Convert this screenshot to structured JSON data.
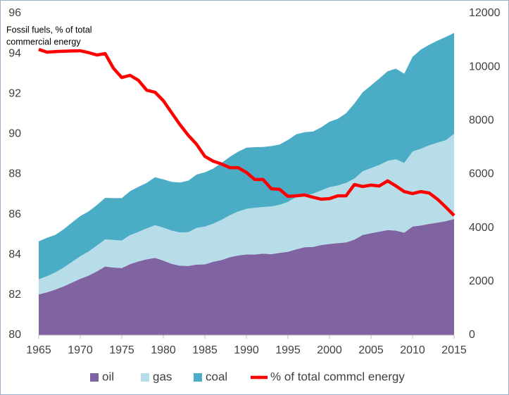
{
  "chart_data": {
    "type": "area",
    "annotation": [
      "Fossil fuels, % of total",
      "commercial energy"
    ],
    "x": [
      1965,
      1966,
      1967,
      1968,
      1969,
      1970,
      1971,
      1972,
      1973,
      1974,
      1975,
      1976,
      1977,
      1978,
      1979,
      1980,
      1981,
      1982,
      1983,
      1984,
      1985,
      1986,
      1987,
      1988,
      1989,
      1990,
      1991,
      1992,
      1993,
      1994,
      1995,
      1996,
      1997,
      1998,
      1999,
      2000,
      2001,
      2002,
      2003,
      2004,
      2005,
      2006,
      2007,
      2008,
      2009,
      2010,
      2011,
      2012,
      2013,
      2014,
      2015
    ],
    "xlim": [
      1965,
      2015
    ],
    "xticks": [
      1965,
      1970,
      1975,
      1980,
      1985,
      1990,
      1995,
      2000,
      2005,
      2010,
      2015
    ],
    "ylim": [
      80,
      96
    ],
    "yticks": [
      80,
      82,
      84,
      86,
      88,
      90,
      92,
      94,
      96
    ],
    "y2lim": [
      0,
      12000
    ],
    "y2ticks": [
      0,
      2000,
      4000,
      6000,
      8000,
      10000,
      12000
    ],
    "legend": "bottom",
    "series": [
      {
        "name": "oil",
        "type": "area",
        "axis": "y2",
        "color": "#8064a2",
        "values": [
          1520,
          1600,
          1700,
          1820,
          1960,
          2100,
          2220,
          2380,
          2560,
          2520,
          2500,
          2650,
          2750,
          2830,
          2880,
          2780,
          2660,
          2590,
          2580,
          2630,
          2640,
          2740,
          2800,
          2910,
          2970,
          3010,
          3010,
          3040,
          3020,
          3070,
          3110,
          3200,
          3280,
          3290,
          3360,
          3400,
          3430,
          3460,
          3560,
          3740,
          3800,
          3860,
          3920,
          3900,
          3820,
          4050,
          4090,
          4150,
          4200,
          4250,
          4330
        ]
      },
      {
        "name": "gas",
        "type": "area",
        "axis": "y2",
        "color": "#b7dde8",
        "values": [
          560,
          600,
          640,
          700,
          770,
          840,
          900,
          960,
          1010,
          1030,
          1030,
          1080,
          1100,
          1150,
          1220,
          1230,
          1240,
          1240,
          1260,
          1370,
          1410,
          1420,
          1500,
          1560,
          1640,
          1700,
          1740,
          1740,
          1780,
          1790,
          1860,
          1950,
          1940,
          1980,
          2040,
          2120,
          2150,
          2220,
          2280,
          2370,
          2430,
          2490,
          2580,
          2660,
          2600,
          2800,
          2860,
          2930,
          2980,
          3020,
          3180
        ]
      },
      {
        "name": "coal",
        "type": "area",
        "axis": "y2",
        "color": "#4bacc6",
        "values": [
          1420,
          1430,
          1400,
          1430,
          1470,
          1500,
          1490,
          1510,
          1550,
          1560,
          1580,
          1640,
          1680,
          1700,
          1790,
          1800,
          1820,
          1860,
          1920,
          1990,
          2020,
          2050,
          2120,
          2180,
          2230,
          2280,
          2260,
          2240,
          2250,
          2250,
          2310,
          2340,
          2350,
          2320,
          2350,
          2440,
          2490,
          2600,
          2800,
          2950,
          3080,
          3220,
          3340,
          3380,
          3330,
          3530,
          3700,
          3750,
          3800,
          3850,
          3760
        ]
      },
      {
        "name": "% of total commcl energy",
        "type": "line",
        "axis": "y",
        "color": "#ff0000",
        "values": [
          94.21,
          94.07,
          94.1,
          94.12,
          94.13,
          94.14,
          94.05,
          93.93,
          94.0,
          93.27,
          92.81,
          92.92,
          92.67,
          92.18,
          92.08,
          91.66,
          91.06,
          90.47,
          89.94,
          89.49,
          88.89,
          88.65,
          88.51,
          88.33,
          88.33,
          88.09,
          87.74,
          87.74,
          87.28,
          87.25,
          86.9,
          86.93,
          86.97,
          86.86,
          86.76,
          86.79,
          86.93,
          86.93,
          87.49,
          87.39,
          87.46,
          87.42,
          87.67,
          87.42,
          87.14,
          87.04,
          87.14,
          87.07,
          86.76,
          86.37,
          85.95
        ]
      }
    ]
  }
}
